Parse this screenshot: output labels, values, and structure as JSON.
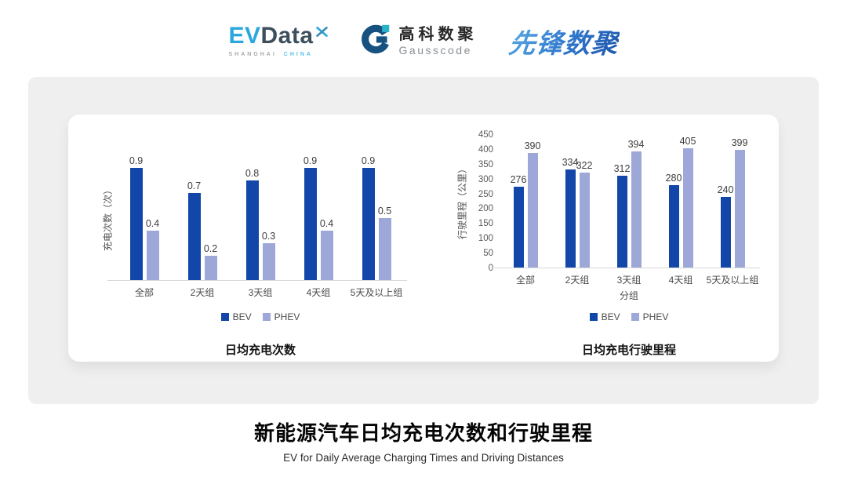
{
  "header": {
    "evdata": {
      "ev": "EV",
      "data": "Data",
      "sub_left": "SHANGHAI",
      "sub_right": "CHINA"
    },
    "gausscode": {
      "cn": "高科数聚",
      "en": "Gausscode"
    },
    "pioneer": {
      "text": "先锋数聚"
    }
  },
  "colors": {
    "bev": "#1246a9",
    "phev": "#9ea8d8",
    "evdata_blue": "#2aa7df",
    "evdata_dark": "#3d4f5d",
    "gausscode_navy": "#17517f",
    "gausscode_teal": "#2ab3c8",
    "pioneer_blue": "#2f77cc",
    "axis_line": "#d9d9d9"
  },
  "chart_data": [
    {
      "type": "bar",
      "title": "日均充电次数",
      "ylabel": "充电次数（次）",
      "xlabel": "",
      "categories": [
        "全部",
        "2天组",
        "3天组",
        "4天组",
        "5天及以上组"
      ],
      "series": [
        {
          "name": "BEV",
          "values": [
            0.9,
            0.7,
            0.8,
            0.9,
            0.9
          ]
        },
        {
          "name": "PHEV",
          "values": [
            0.4,
            0.2,
            0.3,
            0.4,
            0.5
          ]
        }
      ],
      "ylim": [
        0,
        1.0
      ],
      "yticks": [],
      "grid": false,
      "data_labels": true,
      "legend_position": "bottom"
    },
    {
      "type": "bar",
      "title": "日均充电行驶里程",
      "ylabel": "行驶里程（公里）",
      "xlabel": "分组",
      "categories": [
        "全部",
        "2天组",
        "3天组",
        "4天组",
        "5天及以上组"
      ],
      "series": [
        {
          "name": "BEV",
          "values": [
            276,
            334,
            312,
            280,
            240
          ]
        },
        {
          "name": "PHEV",
          "values": [
            390,
            322,
            394,
            405,
            399
          ]
        }
      ],
      "ylim": [
        0,
        450
      ],
      "yticks": [
        0,
        50,
        100,
        150,
        200,
        250,
        300,
        350,
        400,
        450
      ],
      "grid": false,
      "data_labels": true,
      "legend_position": "bottom"
    }
  ],
  "footer": {
    "title": "新能源汽车日均充电次数和行驶里程",
    "subtitle": "EV for Daily Average Charging Times and Driving Distances"
  }
}
